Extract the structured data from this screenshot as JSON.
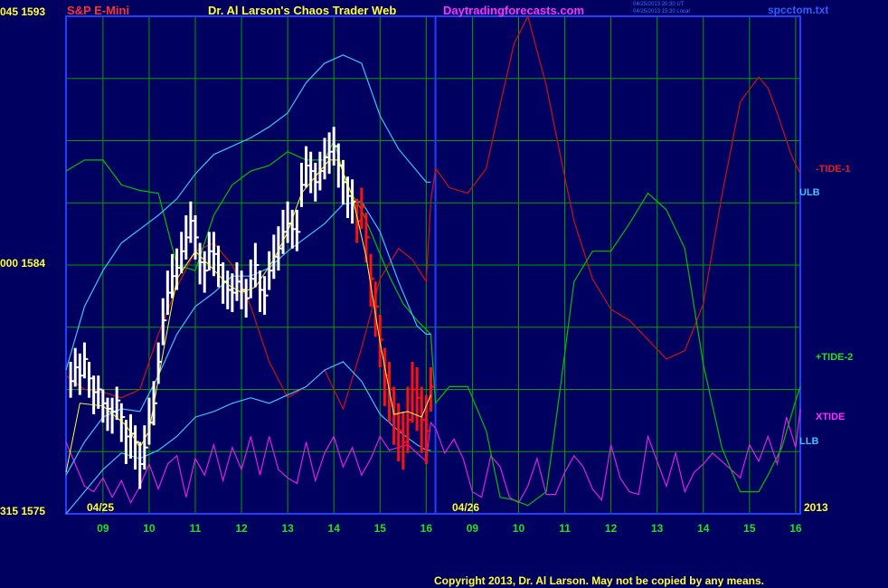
{
  "header": {
    "symbol": "S&P E-Mini",
    "title": "Dr. Al Larson's Chaos Trader Web",
    "site": "Daytradingforecasts.com",
    "timestamp_line1": "04/25/2013 20:30 UT",
    "timestamp_line2": "04/25/2013 15:30 Local",
    "file": "spcctom.txt"
  },
  "footer": {
    "copyright": "Copyright 2013, Dr. Al Larson. May not be copied by any means."
  },
  "colors": {
    "background": "#000060",
    "grid": "#00a000",
    "frame": "#2040ff",
    "tide1": "#d01010",
    "tide2": "#00c000",
    "xtide": "#e020e0",
    "band": "#40c0ff",
    "price_up": "#ffffff",
    "price_down": "#ff1010",
    "signal": "#ffff40"
  },
  "chart_data": {
    "type": "line",
    "y_tick_labels": [
      {
        "value": 1593,
        "label": "045  1593"
      },
      {
        "value": 1584,
        "label": "000  1584"
      },
      {
        "value": 1575,
        "label": "315  1575"
      }
    ],
    "ylim": [
      1575,
      1593
    ],
    "x_ticks": [
      "09",
      "10",
      "11",
      "12",
      "13",
      "14",
      "15",
      "16",
      "09",
      "10",
      "11",
      "12",
      "13",
      "14",
      "15",
      "16"
    ],
    "x_date_labels": [
      "04/25",
      "04/26",
      "2013"
    ],
    "series_labels": [
      {
        "name": "-TIDE-1",
        "color": "#e02020"
      },
      {
        "name": "ULB",
        "color": "#40c0ff"
      },
      {
        "name": "+TIDE-2",
        "color": "#20e020"
      },
      {
        "name": "XTIDE",
        "color": "#ff30ff"
      },
      {
        "name": "LLB",
        "color": "#40c0ff"
      }
    ],
    "price_bars": {
      "x_hours": [
        8.3,
        8.4,
        8.5,
        8.6,
        8.7,
        8.8,
        8.9,
        9.0,
        9.1,
        9.2,
        9.3,
        9.4,
        9.5,
        9.6,
        9.7,
        9.8,
        9.9,
        10.0,
        10.1,
        10.2,
        10.3,
        10.4,
        10.5,
        10.6,
        10.7,
        10.8,
        10.9,
        11.0,
        11.1,
        11.2,
        11.3,
        11.4,
        11.5,
        11.6,
        11.7,
        11.8,
        11.9,
        12.0,
        12.1,
        12.2,
        12.3,
        12.4,
        12.5,
        12.6,
        12.7,
        12.8,
        12.9,
        13.0,
        13.1,
        13.2,
        13.3,
        13.4,
        13.5,
        13.6,
        13.7,
        13.8,
        13.9,
        14.0,
        14.1,
        14.2,
        14.3,
        14.4,
        14.5,
        14.6,
        14.7,
        14.8,
        14.9,
        15.0,
        15.1,
        15.2,
        15.3,
        15.4,
        15.5,
        15.6,
        15.7,
        15.8,
        15.9,
        16.0,
        16.1
      ],
      "close": [
        1579.8,
        1580.3,
        1580.0,
        1580.6,
        1579.9,
        1579.4,
        1579.5,
        1579.0,
        1578.8,
        1578.7,
        1579.1,
        1578.5,
        1577.8,
        1577.9,
        1577.6,
        1576.8,
        1577.4,
        1578.3,
        1579.0,
        1580.5,
        1582.0,
        1583.0,
        1583.6,
        1583.9,
        1584.5,
        1585.0,
        1585.6,
        1585.0,
        1584.1,
        1583.8,
        1584.5,
        1584.4,
        1584.0,
        1583.4,
        1583.1,
        1583.0,
        1583.4,
        1583.1,
        1582.8,
        1583.5,
        1584.0,
        1583.1,
        1582.9,
        1583.8,
        1584.3,
        1584.6,
        1585.2,
        1585.5,
        1585.3,
        1585.2,
        1586.9,
        1587.6,
        1587.4,
        1587.0,
        1587.4,
        1587.9,
        1588.1,
        1588.3,
        1587.6,
        1587.0,
        1586.5,
        1586.3,
        1585.6,
        1586.1,
        1585.0,
        1583.5,
        1582.5,
        1581.3,
        1580.0,
        1579.5,
        1578.6,
        1578.0,
        1577.6,
        1578.4,
        1579.5,
        1579.2,
        1578.4,
        1578.0,
        1579.6
      ],
      "high": [
        1580.5,
        1581.0,
        1580.8,
        1581.2,
        1580.5,
        1580.0,
        1580.0,
        1579.5,
        1579.2,
        1579.2,
        1579.6,
        1579.0,
        1578.4,
        1578.6,
        1578.2,
        1577.6,
        1578.2,
        1579.2,
        1579.8,
        1581.2,
        1582.8,
        1583.8,
        1584.4,
        1584.6,
        1585.2,
        1585.8,
        1586.3,
        1585.8,
        1584.8,
        1584.5,
        1585.2,
        1585.2,
        1584.7,
        1584.1,
        1583.8,
        1583.7,
        1584.1,
        1583.8,
        1583.5,
        1584.2,
        1584.8,
        1583.8,
        1583.6,
        1584.5,
        1585.1,
        1585.4,
        1586.0,
        1586.3,
        1586.0,
        1586.0,
        1587.7,
        1588.3,
        1588.1,
        1587.7,
        1588.1,
        1588.6,
        1588.8,
        1589.0,
        1588.4,
        1587.8,
        1587.2,
        1587.1,
        1586.4,
        1586.8,
        1585.9,
        1584.4,
        1583.4,
        1582.2,
        1581.0,
        1580.5,
        1579.6,
        1579.0,
        1578.7,
        1579.6,
        1580.5,
        1580.3,
        1579.6,
        1579.3,
        1580.3
      ],
      "low": [
        1579.2,
        1579.6,
        1579.3,
        1579.9,
        1579.2,
        1578.6,
        1578.8,
        1578.3,
        1578.0,
        1577.9,
        1578.4,
        1577.6,
        1576.8,
        1577.0,
        1576.6,
        1575.9,
        1576.6,
        1577.5,
        1578.2,
        1579.7,
        1581.1,
        1582.2,
        1582.8,
        1583.1,
        1583.7,
        1584.2,
        1584.8,
        1584.2,
        1583.3,
        1583.0,
        1583.8,
        1583.6,
        1583.2,
        1582.6,
        1582.4,
        1582.3,
        1582.7,
        1582.4,
        1582.1,
        1582.8,
        1583.2,
        1582.3,
        1582.2,
        1583.1,
        1583.5,
        1583.8,
        1584.4,
        1584.8,
        1584.6,
        1584.5,
        1586.1,
        1586.8,
        1586.6,
        1586.3,
        1586.7,
        1587.1,
        1587.3,
        1587.6,
        1586.8,
        1586.2,
        1585.7,
        1585.5,
        1584.8,
        1585.3,
        1584.1,
        1582.5,
        1581.4,
        1580.3,
        1578.9,
        1578.3,
        1577.5,
        1576.9,
        1576.6,
        1577.2,
        1578.3,
        1578.0,
        1577.2,
        1576.8,
        1578.7
      ],
      "down_from_hour": 14.5
    },
    "signal_line": {
      "x_hours": [
        8.2,
        8.5,
        9.0,
        9.5,
        9.8,
        10.0,
        10.3,
        10.6,
        11.0,
        11.3,
        11.7,
        12.0,
        12.3,
        12.7,
        13.0,
        13.3,
        13.6,
        13.9,
        14.1,
        14.4,
        14.7,
        15.0,
        15.3,
        15.6,
        15.9,
        16.1
      ],
      "y": [
        1576.5,
        1579.0,
        1578.9,
        1578.2,
        1577.4,
        1578.0,
        1580.8,
        1583.5,
        1584.5,
        1584.0,
        1583.3,
        1583.0,
        1583.2,
        1584.2,
        1585.2,
        1586.6,
        1587.2,
        1587.8,
        1587.8,
        1586.5,
        1584.3,
        1581.2,
        1578.6,
        1578.7,
        1578.5,
        1579.3
      ]
    },
    "series": [
      {
        "name": "-TIDE-1",
        "x_hours": [
          8.2,
          8.6,
          9.0,
          9.4,
          9.8,
          10.2,
          10.6,
          11.0,
          11.4,
          11.8,
          12.2,
          12.6,
          13.0,
          13.4,
          13.8,
          14.2,
          14.6,
          15.0,
          15.4,
          15.7,
          16.0,
          16.1,
          16.2,
          16.5,
          16.9,
          17.3,
          17.6,
          17.9,
          18.2,
          18.6,
          18.9,
          19.2,
          19.6,
          20.0,
          20.4,
          20.8,
          21.2,
          21.6,
          22.0,
          22.4,
          22.8,
          23.2,
          23.4,
          23.6,
          23.9,
          24.1
        ],
        "y": [
          1580.0,
          1579.5,
          1579.4,
          1579.2,
          1579.5,
          1581.5,
          1583.2,
          1584.5,
          1584.8,
          1584.0,
          1582.5,
          1580.5,
          1579.2,
          1579.6,
          1580.2,
          1578.8,
          1581.0,
          1583.5,
          1584.6,
          1584.2,
          1583.4,
          1586.3,
          1587.5,
          1586.8,
          1586.6,
          1587.5,
          1589.8,
          1592.0,
          1593.0,
          1590.5,
          1588.0,
          1585.6,
          1583.5,
          1582.4,
          1582.0,
          1581.3,
          1580.6,
          1580.9,
          1582.6,
          1586.5,
          1589.9,
          1590.8,
          1590.4,
          1589.5,
          1588.0,
          1587.3
        ]
      },
      {
        "name": "+TIDE-2",
        "x_hours": [
          8.2,
          8.6,
          9.0,
          9.4,
          9.8,
          10.2,
          10.6,
          11.0,
          11.4,
          11.8,
          12.2,
          12.6,
          13.0,
          13.4,
          13.8,
          14.0,
          14.3,
          14.6,
          14.9,
          15.2,
          15.5,
          15.8,
          16.1,
          16.2,
          16.5,
          16.9,
          17.3,
          17.6,
          17.9,
          18.2,
          18.6,
          18.9,
          19.2,
          19.6,
          20.0,
          20.4,
          20.8,
          21.2,
          21.6,
          22.0,
          22.4,
          22.8,
          23.2,
          23.4,
          23.7,
          24.0,
          24.1
        ],
        "y": [
          1587.4,
          1587.8,
          1587.8,
          1586.9,
          1586.7,
          1586.6,
          1584.0,
          1583.8,
          1585.8,
          1586.9,
          1587.4,
          1587.6,
          1588.1,
          1587.8,
          1587.8,
          1588.5,
          1586.8,
          1586.0,
          1584.8,
          1583.6,
          1582.6,
          1582.0,
          1581.5,
          1579.0,
          1579.6,
          1579.6,
          1578.0,
          1575.6,
          1575.5,
          1575.3,
          1575.8,
          1579.5,
          1583.4,
          1584.5,
          1584.5,
          1585.5,
          1586.6,
          1586.0,
          1584.6,
          1580.4,
          1577.4,
          1575.8,
          1575.8,
          1576.4,
          1577.4,
          1579.1,
          1579.6
        ]
      },
      {
        "name": "XTIDE",
        "x_hours": [
          8.2,
          8.4,
          8.6,
          8.8,
          9.0,
          9.2,
          9.4,
          9.6,
          9.8,
          10.0,
          10.2,
          10.4,
          10.6,
          10.8,
          11.0,
          11.2,
          11.4,
          11.6,
          11.8,
          12.0,
          12.2,
          12.4,
          12.6,
          12.8,
          13.0,
          13.2,
          13.4,
          13.6,
          13.8,
          14.0,
          14.2,
          14.4,
          14.6,
          14.8,
          15.0,
          15.2,
          15.4,
          15.6,
          15.8,
          16.0,
          16.1,
          16.2,
          16.4,
          16.6,
          16.8,
          17.0,
          17.2,
          17.4,
          17.6,
          17.8,
          18.0,
          18.2,
          18.4,
          18.6,
          18.8,
          19.0,
          19.2,
          19.4,
          19.6,
          19.8,
          20.0,
          20.2,
          20.4,
          20.6,
          20.8,
          21.0,
          21.2,
          21.4,
          21.6,
          21.8,
          22.0,
          22.2,
          22.4,
          22.6,
          22.8,
          23.0,
          23.2,
          23.4,
          23.6,
          23.8,
          24.0,
          24.1
        ],
        "y": [
          1577.6,
          1576.8,
          1576.0,
          1575.8,
          1576.3,
          1575.6,
          1576.2,
          1575.4,
          1576.0,
          1576.8,
          1575.9,
          1576.8,
          1577.1,
          1575.6,
          1577.0,
          1576.4,
          1577.5,
          1576.2,
          1577.4,
          1576.6,
          1577.8,
          1576.4,
          1577.8,
          1576.6,
          1576.3,
          1576.1,
          1577.6,
          1576.2,
          1577.2,
          1577.8,
          1576.7,
          1577.4,
          1576.4,
          1577.0,
          1577.8,
          1577.3,
          1577.4,
          1577.5,
          1577.2,
          1576.9,
          1578.3,
          1578.1,
          1577.2,
          1577.7,
          1577.0,
          1575.8,
          1575.6,
          1577.1,
          1576.7,
          1575.6,
          1575.4,
          1576.0,
          1577.0,
          1575.7,
          1575.7,
          1576.5,
          1577.1,
          1576.7,
          1575.9,
          1575.5,
          1577.5,
          1576.3,
          1575.8,
          1575.7,
          1577.8,
          1576.9,
          1576.0,
          1577.2,
          1575.8,
          1576.5,
          1576.8,
          1577.2,
          1576.9,
          1576.6,
          1576.3,
          1577.5,
          1576.9,
          1577.8,
          1576.8,
          1578.5,
          1577.4,
          1578.8
        ]
      },
      {
        "name": "ULB",
        "x_hours": [
          8.2,
          8.6,
          9.0,
          9.4,
          9.8,
          10.2,
          10.6,
          11.0,
          11.4,
          11.8,
          12.2,
          12.6,
          13.0,
          13.4,
          13.8,
          14.2,
          14.6,
          15.0,
          15.4,
          15.8,
          16.0,
          16.1
        ],
        "y": [
          1580.2,
          1582.5,
          1583.8,
          1584.8,
          1585.3,
          1585.8,
          1586.4,
          1587.3,
          1588.0,
          1588.3,
          1588.6,
          1589.0,
          1589.5,
          1590.6,
          1591.3,
          1591.6,
          1591.3,
          1589.4,
          1588.2,
          1587.4,
          1587.0,
          1587.0
        ]
      },
      {
        "name": "Mid band",
        "x_hours": [
          8.2,
          8.6,
          9.0,
          9.4,
          9.8,
          10.2,
          10.6,
          11.0,
          11.4,
          11.8,
          12.2,
          12.6,
          13.0,
          13.4,
          13.8,
          14.2,
          14.6,
          15.0,
          15.4,
          15.8,
          16.0,
          16.1
        ],
        "y": [
          1576.4,
          1577.6,
          1578.5,
          1578.8,
          1578.7,
          1580.0,
          1581.5,
          1582.5,
          1583.0,
          1583.6,
          1583.6,
          1583.9,
          1584.5,
          1585.0,
          1585.5,
          1586.2,
          1586.3,
          1585.2,
          1583.4,
          1581.8,
          1581.5,
          1581.5
        ]
      },
      {
        "name": "LLB",
        "x_hours": [
          8.2,
          8.6,
          9.0,
          9.4,
          9.8,
          10.2,
          10.6,
          11.0,
          11.4,
          11.8,
          12.2,
          12.6,
          13.0,
          13.4,
          13.8,
          14.2,
          14.6,
          15.0,
          15.4,
          15.8,
          16.0,
          16.1
        ],
        "y": [
          1575.0,
          1575.8,
          1576.6,
          1577.2,
          1577.0,
          1577.3,
          1577.8,
          1578.5,
          1578.7,
          1579.0,
          1579.2,
          1579.0,
          1579.3,
          1579.6,
          1580.2,
          1580.5,
          1579.8,
          1578.6,
          1578.0,
          1577.5,
          1577.3,
          1577.3
        ]
      }
    ]
  }
}
